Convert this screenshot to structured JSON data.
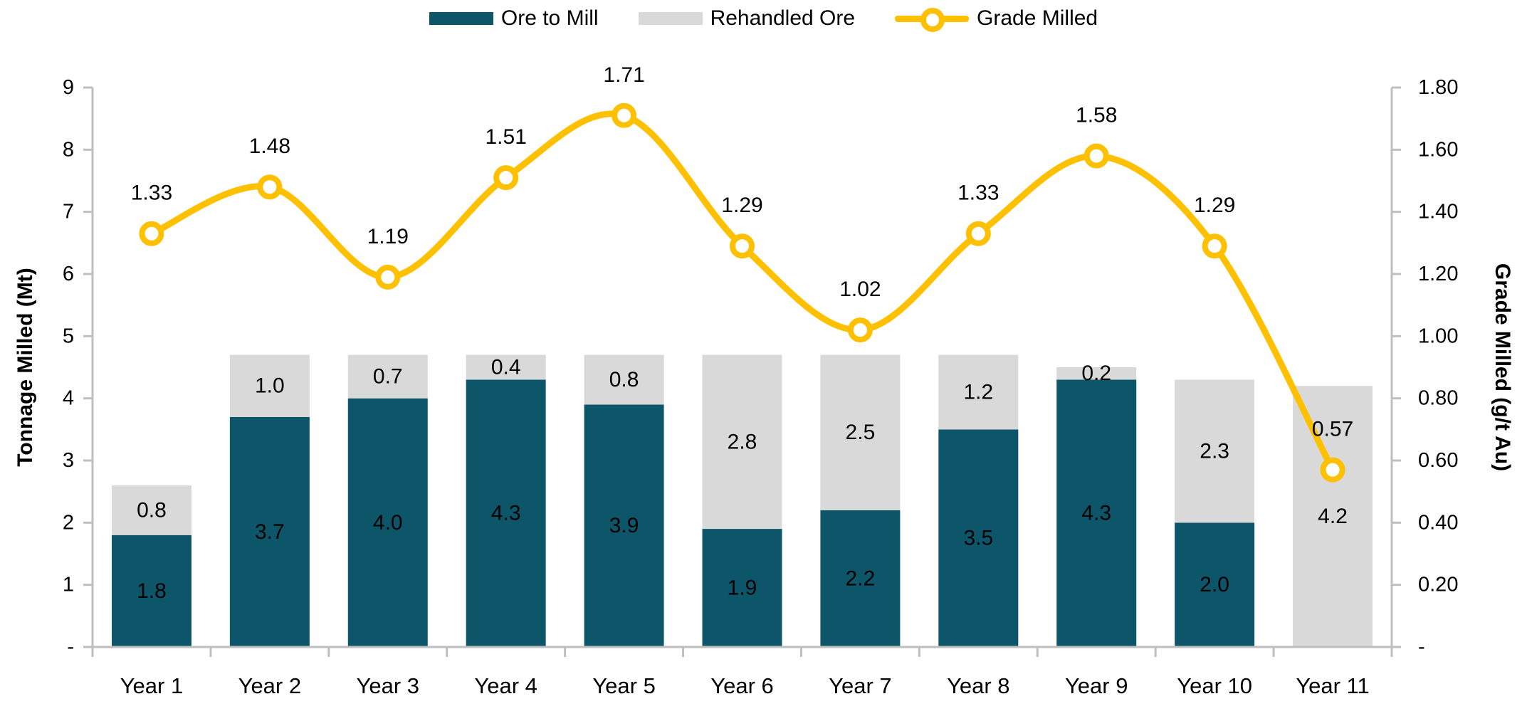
{
  "chart_data": {
    "type": "combo",
    "subtype": "stacked-bar-with-line",
    "categories": [
      "Year 1",
      "Year 2",
      "Year 3",
      "Year 4",
      "Year 5",
      "Year 6",
      "Year 7",
      "Year 8",
      "Year 9",
      "Year 10",
      "Year 11"
    ],
    "bar_series": [
      {
        "name": "Ore to Mill",
        "color": "#0D566A",
        "label_color": "#FFFFFF",
        "values": [
          1.8,
          3.7,
          4.0,
          4.3,
          3.9,
          1.9,
          2.2,
          3.5,
          4.3,
          2.0,
          0
        ],
        "labels": [
          "1.8",
          "3.7",
          "4.0",
          "4.3",
          "3.9",
          "1.9",
          "2.2",
          "3.5",
          "4.3",
          "2.0",
          ""
        ]
      },
      {
        "name": "Rehandled Ore",
        "color": "#D9D9D9",
        "label_color": "#1A1A1A",
        "values": [
          0.8,
          1.0,
          0.7,
          0.4,
          0.8,
          2.8,
          2.5,
          1.2,
          0.2,
          2.3,
          4.2
        ],
        "labels": [
          "0.8",
          "1.0",
          "0.7",
          "0.4",
          "0.8",
          "2.8",
          "2.5",
          "1.2",
          "0.2",
          "2.3",
          "4.2"
        ]
      }
    ],
    "line_series": {
      "name": "Grade Milled",
      "color": "#FFC000",
      "axis": "right",
      "values": [
        1.33,
        1.48,
        1.19,
        1.51,
        1.71,
        1.29,
        1.02,
        1.33,
        1.58,
        1.29,
        0.57
      ],
      "labels": [
        "1.33",
        "1.48",
        "1.19",
        "1.51",
        "1.71",
        "1.29",
        "1.02",
        "1.33",
        "1.58",
        "1.29",
        "0.57"
      ]
    },
    "left_axis": {
      "title": "Tonnage Milled (Mt)",
      "min": 0,
      "max": 9,
      "tick_labels": [
        "9",
        "8",
        "7",
        "6",
        "5",
        "4",
        "3",
        "2",
        "1",
        "-"
      ]
    },
    "right_axis": {
      "title": "Grade Milled (g/t Au)",
      "min": 0,
      "max": 1.8,
      "tick_labels": [
        "1.80",
        "1.60",
        "1.40",
        "1.20",
        "1.00",
        "0.80",
        "0.60",
        "0.40",
        "0.20",
        "-"
      ]
    },
    "x_axis": {
      "labels": [
        "Year 1",
        "Year 2",
        "Year 3",
        "Year 4",
        "Year 5",
        "Year 6",
        "Year 7",
        "Year 8",
        "Year 9",
        "Year 10",
        "Year 11"
      ]
    },
    "grid": false,
    "legend_position": "top-center",
    "colors": {
      "axis_line": "#BFBFBF",
      "text": "#000000",
      "marker_fill": "#FFFFFF"
    }
  }
}
